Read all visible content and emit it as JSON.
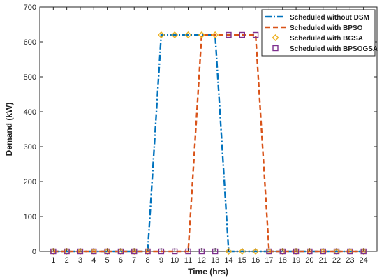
{
  "chart_data": {
    "type": "line",
    "xlabel": "Time (hrs)",
    "ylabel": "Demand (kW)",
    "xlim": [
      0,
      25
    ],
    "ylim": [
      0,
      700
    ],
    "x_ticks": [
      1,
      2,
      3,
      4,
      5,
      6,
      7,
      8,
      9,
      10,
      11,
      12,
      13,
      14,
      15,
      16,
      17,
      18,
      19,
      20,
      21,
      22,
      23,
      24
    ],
    "y_ticks": [
      0,
      100,
      200,
      300,
      400,
      500,
      600,
      700
    ],
    "grid": false,
    "legend_position": "top-right",
    "x": [
      1,
      2,
      3,
      4,
      5,
      6,
      7,
      8,
      9,
      10,
      11,
      12,
      13,
      14,
      15,
      16,
      17,
      18,
      19,
      20,
      21,
      22,
      23,
      24
    ],
    "series": [
      {
        "name": "Scheduled without DSM",
        "color": "#0072BD",
        "style": "dashdot",
        "marker": "none",
        "values": [
          0,
          0,
          0,
          0,
          0,
          0,
          0,
          0,
          620,
          620,
          620,
          620,
          620,
          0,
          0,
          0,
          0,
          0,
          0,
          0,
          0,
          0,
          0,
          0
        ]
      },
      {
        "name": "Scheduled with BPSO",
        "color": "#D95319",
        "style": "dashed",
        "marker": "none",
        "values": [
          0,
          0,
          0,
          0,
          0,
          0,
          0,
          0,
          0,
          0,
          0,
          620,
          620,
          620,
          620,
          620,
          0,
          0,
          0,
          0,
          0,
          0,
          0,
          0
        ]
      },
      {
        "name": "Scheduled with BGSA",
        "color": "#EDB120",
        "style": "none",
        "marker": "diamond",
        "values": [
          0,
          0,
          0,
          0,
          0,
          0,
          0,
          0,
          620,
          620,
          620,
          620,
          620,
          0,
          0,
          0,
          0,
          0,
          0,
          0,
          0,
          0,
          0,
          0
        ]
      },
      {
        "name": "Scheduled with BPSOGSA",
        "color": "#7E2F8E",
        "style": "none",
        "marker": "square",
        "values": [
          0,
          0,
          0,
          0,
          0,
          0,
          0,
          0,
          0,
          0,
          0,
          0,
          0,
          620,
          620,
          620,
          0,
          0,
          0,
          0,
          0,
          0,
          0,
          0
        ]
      }
    ]
  }
}
